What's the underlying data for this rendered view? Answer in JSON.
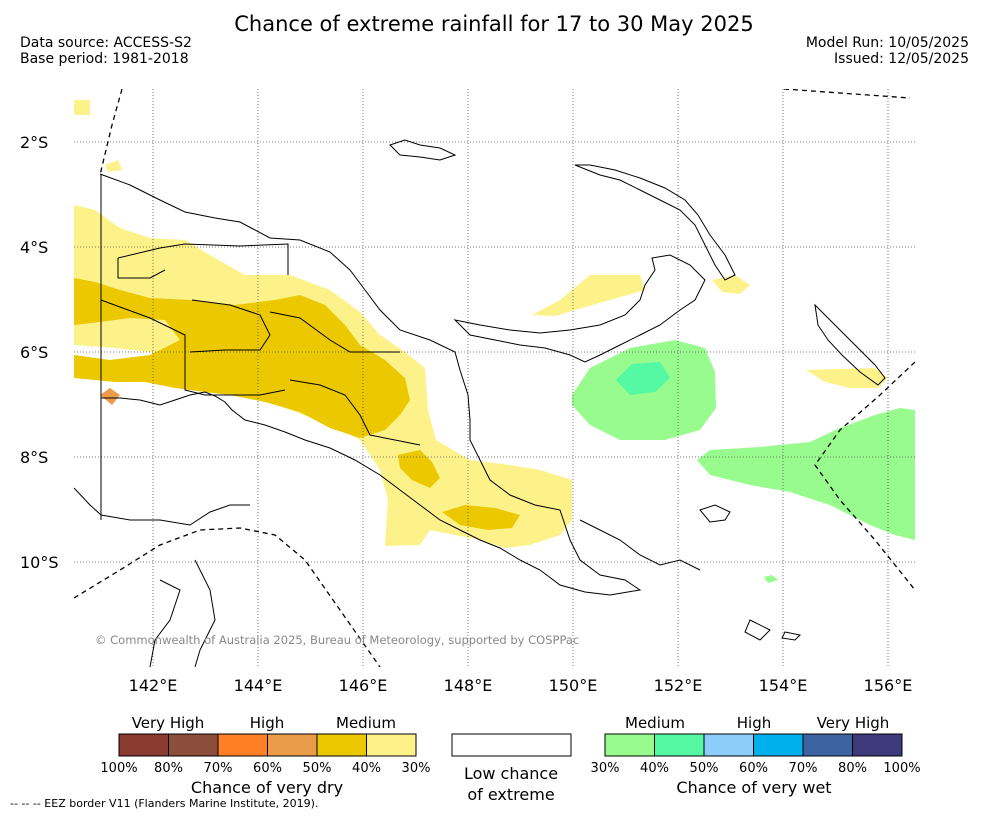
{
  "title": "Chance of extreme rainfall for 17 to 30 May 2025",
  "data_source": "Data source: ACCESS-S2",
  "base_period": "Base period: 1981-2018",
  "model_run": "Model Run: 10/05/2025",
  "issued": "Issued: 12/05/2025",
  "copyright": "© Commonwealth of Australia 2025, Bureau of Meteorology, supported by COSPPac",
  "footer_note": "--  --  -- EEZ border V11 (Flanders Marine Institute, 2019).",
  "map": {
    "lat_labels": [
      "2°S",
      "4°S",
      "6°S",
      "8°S",
      "10°S"
    ],
    "lon_labels": [
      "142°E",
      "144°E",
      "146°E",
      "148°E",
      "150°E",
      "152°E",
      "154°E",
      "156°E"
    ]
  },
  "legend_dry": {
    "caption": "Chance of very dry",
    "headers": [
      "Very High",
      "High",
      "Medium"
    ],
    "colors": [
      "#8b3a2f",
      "#8b4e3a",
      "#ff7f27",
      "#eb9c4b",
      "#ebc800",
      "#fdf28a"
    ],
    "ticks": [
      "100%",
      "80%",
      "70%",
      "60%",
      "50%",
      "40%",
      "30%"
    ]
  },
  "legend_low": {
    "caption_line1": "Low chance",
    "caption_line2": "of extreme"
  },
  "legend_wet": {
    "caption": "Chance of very wet",
    "headers": [
      "Medium",
      "High",
      "Very High"
    ],
    "colors": [
      "#98fb8e",
      "#55f9a4",
      "#8ccdfa",
      "#00b0ec",
      "#3c63a2",
      "#3d3a7b"
    ],
    "ticks": [
      "30%",
      "40%",
      "50%",
      "60%",
      "70%",
      "80%",
      "100%"
    ]
  },
  "colors": {
    "dry_medium_light": "#fdf28a",
    "dry_medium_dark": "#ebc800",
    "dry_high": "#eb9c4b",
    "wet_medium": "#98fb8e",
    "wet_medium_dark": "#55f9a4"
  }
}
